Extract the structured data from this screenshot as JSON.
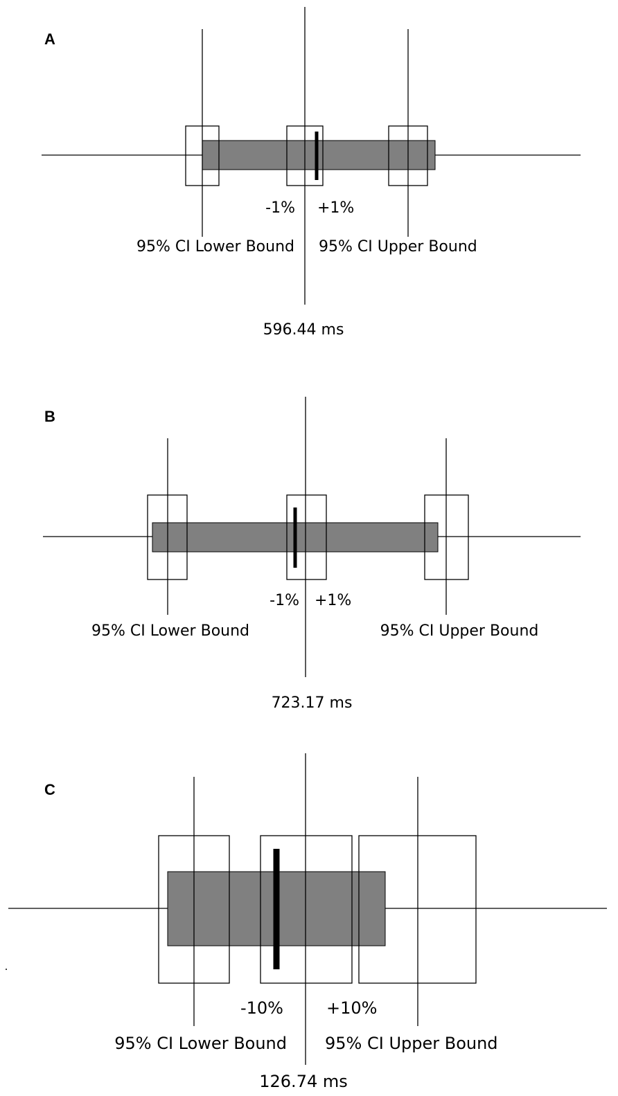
{
  "panels": [
    {
      "letter": "A",
      "minus_label": "-1%",
      "plus_label": "+1%",
      "lower_label": "95% CI Lower Bound",
      "upper_label": "95% CI Upper Bound",
      "value_label": "596.44 ms"
    },
    {
      "letter": "B",
      "minus_label": "-1%",
      "plus_label": "+1%",
      "lower_label": "95% CI Lower Bound",
      "upper_label": "95% CI Upper Bound",
      "value_label": "723.17 ms"
    },
    {
      "letter": "C",
      "minus_label": "-10%",
      "plus_label": "+10%",
      "lower_label": "95% CI Lower Bound",
      "upper_label": "95% CI Upper Bound",
      "value_label": "126.74 ms"
    }
  ],
  "colors": {
    "bar_fill": "#808080",
    "line": "#000000",
    "background": "#ffffff"
  }
}
